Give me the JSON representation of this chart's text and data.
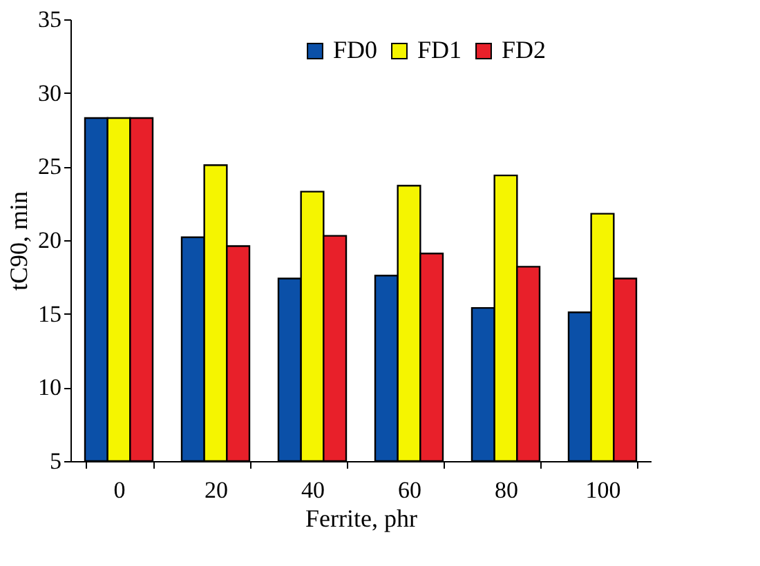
{
  "chart_data": {
    "type": "bar",
    "xlabel": "Ferrite, phr",
    "ylabel": "tC90, min",
    "categories": [
      "0",
      "20",
      "40",
      "60",
      "80",
      "100"
    ],
    "series": [
      {
        "name": "FD0",
        "color": "#0b50a8",
        "values": [
          28.3,
          20.2,
          17.4,
          17.6,
          15.4,
          15.1
        ]
      },
      {
        "name": "FD1",
        "color": "#f5f500",
        "values": [
          28.3,
          25.1,
          23.3,
          23.7,
          24.4,
          21.8
        ]
      },
      {
        "name": "FD2",
        "color": "#e8202a",
        "values": [
          28.3,
          19.6,
          20.3,
          19.1,
          18.2,
          17.4
        ]
      }
    ],
    "ylim": [
      5,
      35
    ],
    "yticks": [
      5,
      10,
      15,
      20,
      25,
      30,
      35
    ],
    "grid": false,
    "legend": "top"
  }
}
